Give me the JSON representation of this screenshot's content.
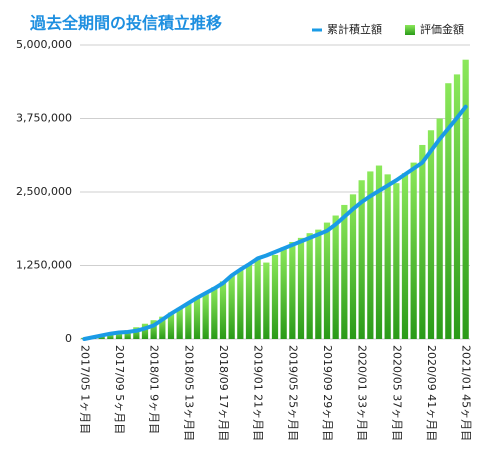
{
  "chart_data": {
    "type": "bar",
    "title": "過去全期間の投信積立推移",
    "categories": [
      "2017/05 1ヶ月目",
      null,
      null,
      null,
      "2017/09 5ヶ月目",
      null,
      null,
      null,
      "2018/01 9ヶ月目",
      null,
      null,
      null,
      "2018/05 13ヶ月目",
      null,
      null,
      null,
      "2018/09 17ヶ月目",
      null,
      null,
      null,
      "2019/01 21ヶ月目",
      null,
      null,
      null,
      "2019/05 25ヶ月目",
      null,
      null,
      null,
      "2019/09 29ヶ月目",
      null,
      null,
      null,
      "2020/01 33ヶ月目",
      null,
      null,
      null,
      "2020/05 37ヶ月目",
      null,
      null,
      null,
      "2020/09 41ヶ月目",
      null,
      null,
      null,
      "2021/01 45ヶ月目"
    ],
    "series": [
      {
        "name": "評価金額",
        "type": "bar",
        "color": "#4cc42a",
        "values": [
          20000,
          40000,
          70000,
          90000,
          110000,
          150000,
          200000,
          260000,
          320000,
          380000,
          450000,
          530000,
          600000,
          690000,
          780000,
          880000,
          980000,
          1080000,
          1180000,
          1280000,
          1350000,
          1300000,
          1430000,
          1560000,
          1650000,
          1720000,
          1800000,
          1860000,
          1980000,
          2100000,
          2280000,
          2460000,
          2700000,
          2850000,
          2950000,
          2800000,
          2650000,
          2820000,
          3000000,
          3300000,
          3550000,
          3750000,
          4350000,
          4500000,
          4750000
        ]
      },
      {
        "name": "累計積立額",
        "type": "line",
        "color": "#1a9be6",
        "values": [
          0,
          30000,
          60000,
          90000,
          110000,
          120000,
          140000,
          180000,
          230000,
          330000,
          430000,
          520000,
          610000,
          700000,
          780000,
          860000,
          950000,
          1080000,
          1180000,
          1270000,
          1370000,
          1420000,
          1480000,
          1540000,
          1600000,
          1660000,
          1720000,
          1780000,
          1840000,
          1950000,
          2080000,
          2210000,
          2330000,
          2430000,
          2520000,
          2610000,
          2700000,
          2800000,
          2900000,
          3000000,
          3200000,
          3400000,
          3580000,
          3760000,
          3950000
        ]
      }
    ],
    "ylim": [
      0,
      5000000
    ],
    "yticks": [
      0,
      {
        "value": 1250000,
        "label": "1,250,000"
      },
      {
        "value": 2500000,
        "label": "2,500,000"
      },
      {
        "value": 3750000,
        "label": "3,750,000"
      },
      {
        "value": 5000000,
        "label": "5,000,000"
      }
    ],
    "grid": true
  }
}
